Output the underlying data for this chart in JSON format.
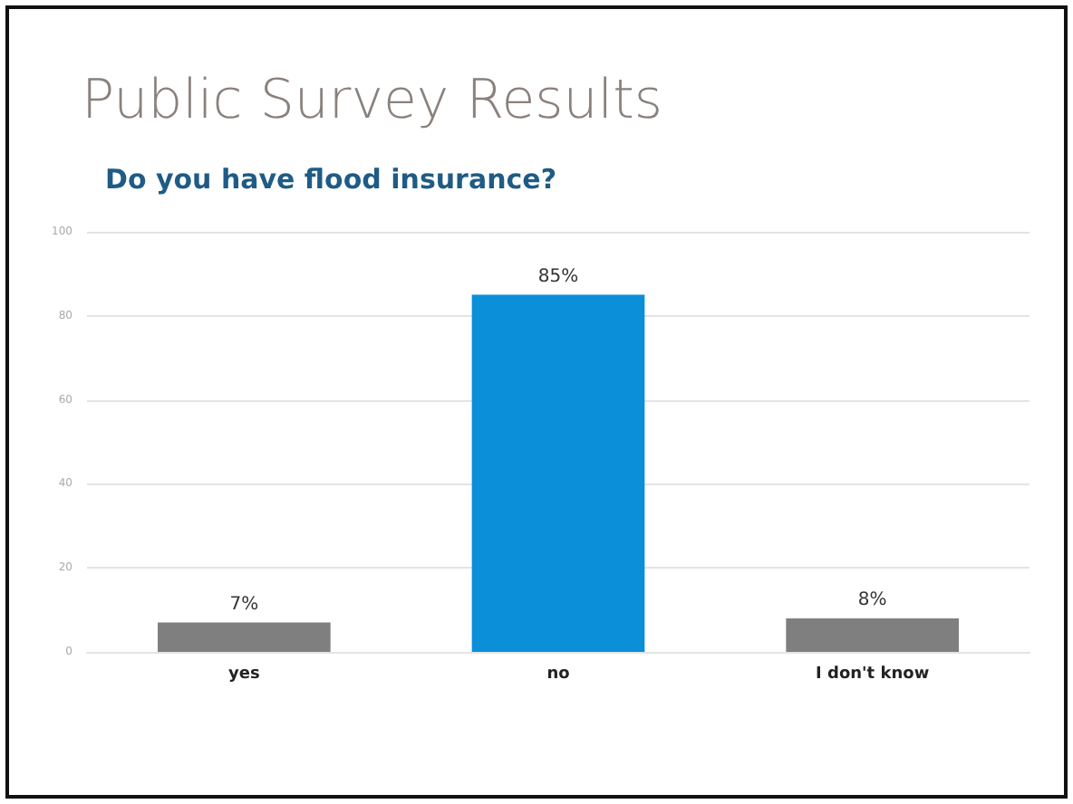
{
  "chart_data": {
    "type": "bar",
    "title": "Public Survey Results",
    "subtitle": "Do you have flood insurance?",
    "categories": [
      "yes",
      "no",
      "I don't know"
    ],
    "values": [
      7,
      85,
      8
    ],
    "colors": [
      "#7f7f7f",
      "#0a8fd8",
      "#7f7f7f"
    ],
    "value_labels": [
      "7%",
      "85%",
      "8%"
    ],
    "ylim": [
      0,
      100
    ],
    "yticks": [
      0,
      20,
      40,
      60,
      80,
      100
    ],
    "grid": "y"
  }
}
